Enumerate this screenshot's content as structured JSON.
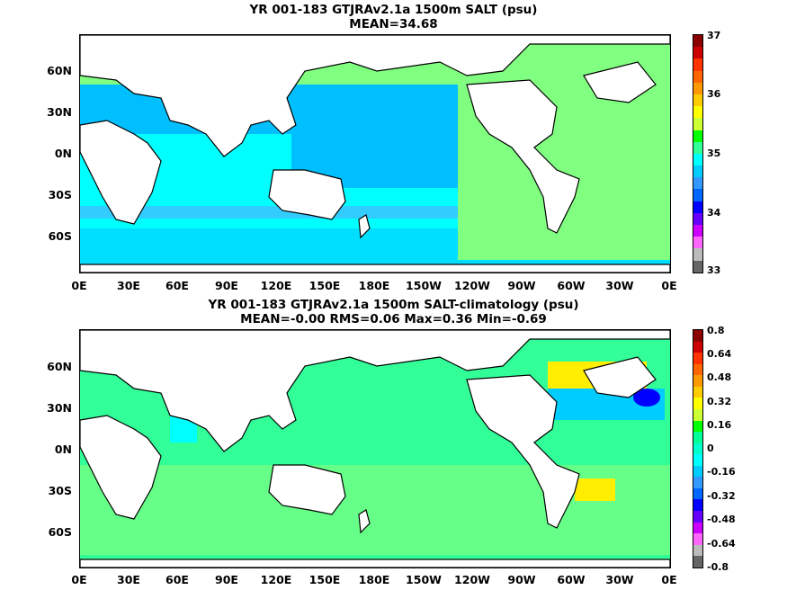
{
  "panel1": {
    "title_line1": "YR 001-183 GTJRAv2.1a 1500m SALT (psu)",
    "title_line2": "MEAN=34.68",
    "y_ticks": [
      "60N",
      "30N",
      "0N",
      "30S",
      "60S"
    ],
    "x_ticks": [
      "0E",
      "30E",
      "60E",
      "90E",
      "120E",
      "150E",
      "180E",
      "150W",
      "120W",
      "90W",
      "60W",
      "30W",
      "0E"
    ],
    "colorbar_labels": [
      "37",
      "36",
      "35",
      "34",
      "33"
    ],
    "colorbar_colors": [
      "#8b0000",
      "#cc0000",
      "#ff3300",
      "#ff6600",
      "#ff9900",
      "#ffcc00",
      "#ffff00",
      "#ccff33",
      "#00ff00",
      "#33ff99",
      "#00ffff",
      "#00ccff",
      "#3399ff",
      "#0066ff",
      "#0000ff",
      "#6600ff",
      "#cc00ff",
      "#ff66ff",
      "#bbbbbb",
      "#666666"
    ]
  },
  "panel2": {
    "title_line1": "YR 001-183 GTJRAv2.1a 1500m SALT-climatology (psu)",
    "title_line2": "MEAN=-0.00   RMS=0.06   Max=0.36   Min=-0.69",
    "y_ticks": [
      "60N",
      "30N",
      "0N",
      "30S",
      "60S"
    ],
    "x_ticks": [
      "0E",
      "30E",
      "60E",
      "90E",
      "120E",
      "150E",
      "180E",
      "150W",
      "120W",
      "90W",
      "60W",
      "30W",
      "0E"
    ],
    "colorbar_labels": [
      "0.8",
      "0.64",
      "0.48",
      "0.32",
      "0.16",
      "0",
      "-0.16",
      "-0.32",
      "-0.48",
      "-0.64",
      "-0.8"
    ],
    "colorbar_colors": [
      "#8b0000",
      "#cc0000",
      "#ff3300",
      "#ff6600",
      "#ff9900",
      "#ffcc00",
      "#ffff00",
      "#ccff33",
      "#00ff00",
      "#00ff99",
      "#00ffcc",
      "#00ffff",
      "#00ccff",
      "#3399ff",
      "#0066ff",
      "#0000ff",
      "#6600ff",
      "#cc00ff",
      "#ff66ff",
      "#bbbbbb",
      "#666666"
    ]
  }
}
